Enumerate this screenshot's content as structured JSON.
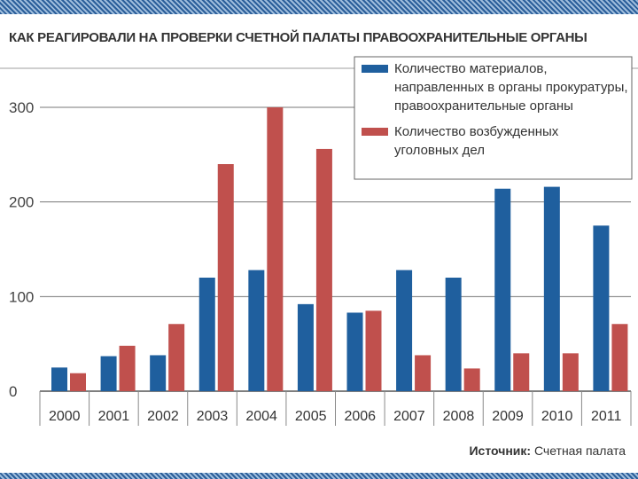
{
  "chart_data": {
    "type": "bar",
    "title": "КАК РЕАГИРОВАЛИ НА ПРОВЕРКИ СЧЕТНОЙ ПАЛАТЫ ПРАВООХРАНИТЕЛЬНЫЕ ОРГАНЫ",
    "categories": [
      "2000",
      "2001",
      "2002",
      "2003",
      "2004",
      "2005",
      "2006",
      "2007",
      "2008",
      "2009",
      "2010",
      "2011"
    ],
    "series": [
      {
        "name": "Количество материалов, направленных в органы прокуратуры, правоохранительные органы",
        "color": "#1f5f9e",
        "values": [
          25,
          37,
          38,
          120,
          128,
          92,
          83,
          128,
          120,
          214,
          216,
          175
        ]
      },
      {
        "name": "Количество возбужденных уголовных дел",
        "color": "#c0504d",
        "values": [
          19,
          48,
          71,
          240,
          300,
          256,
          85,
          38,
          24,
          40,
          40,
          71
        ]
      }
    ],
    "yticks": [
      "300",
      "200",
      "100",
      "0"
    ],
    "ylim": [
      0,
      300
    ],
    "grid": true,
    "legend_placement": "top-right",
    "legend_lines": [
      [
        "Количество материалов,",
        "направленных в органы прокуратуры,",
        "правоохранительные органы"
      ],
      [
        "Количество возбужденных",
        "уголовных дел"
      ]
    ],
    "source_label": "Источник:",
    "source_value": "Счетная палата"
  }
}
